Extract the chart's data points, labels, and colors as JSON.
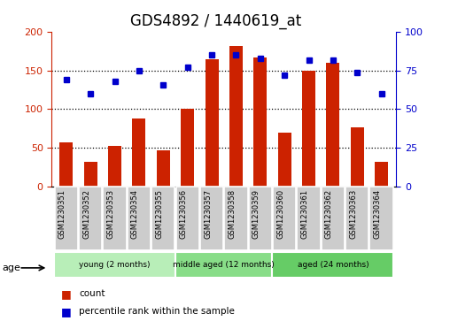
{
  "title": "GDS4892 / 1440619_at",
  "samples": [
    "GSM1230351",
    "GSM1230352",
    "GSM1230353",
    "GSM1230354",
    "GSM1230355",
    "GSM1230356",
    "GSM1230357",
    "GSM1230358",
    "GSM1230359",
    "GSM1230360",
    "GSM1230361",
    "GSM1230362",
    "GSM1230363",
    "GSM1230364"
  ],
  "counts": [
    57,
    32,
    52,
    88,
    46,
    101,
    165,
    182,
    167,
    70,
    150,
    160,
    76,
    32
  ],
  "percentiles": [
    69,
    60,
    68,
    75,
    66,
    77,
    85,
    85,
    83,
    72,
    82,
    82,
    74,
    60
  ],
  "groups": [
    {
      "label": "young (2 months)",
      "start": 0,
      "end": 5
    },
    {
      "label": "middle aged (12 months)",
      "start": 5,
      "end": 9
    },
    {
      "label": "aged (24 months)",
      "start": 9,
      "end": 14
    }
  ],
  "group_colors": [
    "#B8EEB8",
    "#88DD88",
    "#66CC66"
  ],
  "bar_color": "#CC2200",
  "dot_color": "#0000CC",
  "left_axis_color": "#CC2200",
  "right_axis_color": "#0000CC",
  "ylim_left": [
    0,
    200
  ],
  "ylim_right": [
    0,
    100
  ],
  "yticks_left": [
    0,
    50,
    100,
    150,
    200
  ],
  "yticks_right": [
    0,
    25,
    50,
    75,
    100
  ],
  "background_color": "#ffffff",
  "title_fontsize": 12,
  "age_label": "age",
  "legend_items": [
    "count",
    "percentile rank within the sample"
  ],
  "sample_box_color": "#CCCCCC",
  "gridline_color": "#000000"
}
